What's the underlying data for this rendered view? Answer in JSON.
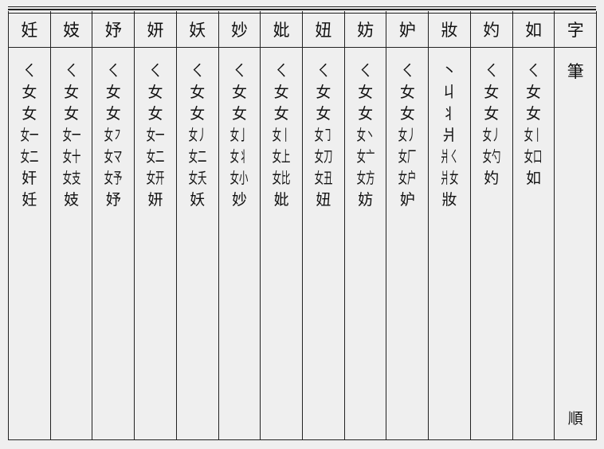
{
  "columns": [
    {
      "char": "妊",
      "steps": [
        "ㄑ",
        "女",
        "女",
        "女一",
        "女二",
        "奸",
        "妊"
      ]
    },
    {
      "char": "妓",
      "steps": [
        "ㄑ",
        "女",
        "女",
        "女一",
        "女十",
        "女支",
        "妓"
      ]
    },
    {
      "char": "妤",
      "steps": [
        "ㄑ",
        "女",
        "女",
        "女㇇",
        "女マ",
        "女予",
        "妤"
      ]
    },
    {
      "char": "妍",
      "steps": [
        "ㄑ",
        "女",
        "女",
        "女一",
        "女二",
        "女开",
        "妍"
      ]
    },
    {
      "char": "妖",
      "steps": [
        "ㄑ",
        "女",
        "女",
        "女丿",
        "女二",
        "女夭",
        "妖"
      ]
    },
    {
      "char": "妙",
      "steps": [
        "ㄑ",
        "女",
        "女",
        "女亅",
        "女丬",
        "女小",
        "妙"
      ]
    },
    {
      "char": "妣",
      "steps": [
        "ㄑ",
        "女",
        "女",
        "女丨",
        "女上",
        "女比",
        "妣"
      ]
    },
    {
      "char": "妞",
      "steps": [
        "ㄑ",
        "女",
        "女",
        "女㇆",
        "女刀",
        "女丑",
        "妞"
      ]
    },
    {
      "char": "妨",
      "steps": [
        "ㄑ",
        "女",
        "女",
        "女丶",
        "女亠",
        "女方",
        "妨"
      ]
    },
    {
      "char": "妒",
      "steps": [
        "ㄑ",
        "女",
        "女",
        "女丿",
        "女厂",
        "女户",
        "妒"
      ]
    },
    {
      "char": "妝",
      "steps": [
        "丶",
        "丩",
        "丬",
        "爿",
        "爿ㄑ",
        "爿女",
        "妝"
      ]
    },
    {
      "char": "妁",
      "steps": [
        "ㄑ",
        "女",
        "女",
        "女丿",
        "女勺",
        "妁"
      ]
    },
    {
      "char": "如",
      "steps": [
        "ㄑ",
        "女",
        "女",
        "女丨",
        "女口",
        "如"
      ]
    }
  ],
  "label_column": {
    "header": "字",
    "top": "筆",
    "bottom": "順"
  }
}
